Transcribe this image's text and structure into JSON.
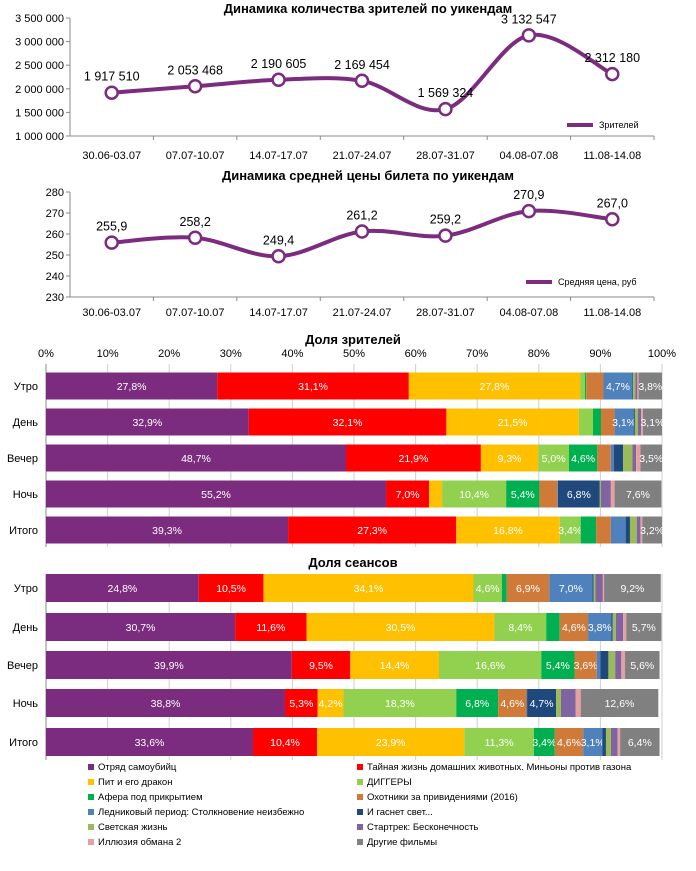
{
  "colors": {
    "line": "#7B2C7E",
    "series": [
      "#7B2C7E",
      "#FF0000",
      "#FFC000",
      "#92D050",
      "#00B050",
      "#D07A3A",
      "#4F81BD",
      "#1F497D",
      "#9BBB59",
      "#8064A2",
      "#E6A0A0",
      "#808080"
    ]
  },
  "chart_data": [
    {
      "type": "line",
      "title": "Динамика количества зрителей по уикендам",
      "categories": [
        "30.06-03.07",
        "07.07-10.07",
        "14.07-17.07",
        "21.07-24.07",
        "28.07-31.07",
        "04.08-07.08",
        "11.08-14.08"
      ],
      "series": [
        {
          "name": "Зрителей",
          "values": [
            1917510,
            2053468,
            2190605,
            2169454,
            1569324,
            3132547,
            2312180
          ]
        }
      ],
      "data_labels": [
        "1 917 510",
        "2 053 468",
        "2 190 605",
        "2 169 454",
        "1 569 324",
        "3 132 547",
        "2 312 180"
      ],
      "ylim": [
        1000000,
        3500000
      ],
      "yticks": [
        "1 000 000",
        "1 500 000",
        "2 000 000",
        "2 500 000",
        "3 000 000",
        "3 500 000"
      ],
      "smooth": true,
      "grid": false,
      "legend": "bottom-right"
    },
    {
      "type": "line",
      "title": "Динамика средней цены билета по уикендам",
      "categories": [
        "30.06-03.07",
        "07.07-10.07",
        "14.07-17.07",
        "21.07-24.07",
        "28.07-31.07",
        "04.08-07.08",
        "11.08-14.08"
      ],
      "series": [
        {
          "name": "Средняя цена, руб",
          "values": [
            255.9,
            258.2,
            249.4,
            261.2,
            259.2,
            270.9,
            267.0
          ]
        }
      ],
      "data_labels": [
        "255,9",
        "258,2",
        "249,4",
        "261,2",
        "259,2",
        "270,9",
        "267,0"
      ],
      "ylim": [
        230,
        280
      ],
      "yticks": [
        "230",
        "240",
        "250",
        "260",
        "270",
        "280"
      ],
      "smooth": true,
      "grid": false,
      "legend": "bottom-right"
    },
    {
      "type": "bar",
      "orientation": "horizontal",
      "stacked": "percent",
      "title": "Доля зрителей",
      "categories": [
        "Утро",
        "День",
        "Вечер",
        "Ночь",
        "Итого"
      ],
      "xticks": [
        "0%",
        "10%",
        "20%",
        "30%",
        "40%",
        "50%",
        "60%",
        "70%",
        "80%",
        "90%",
        "100%"
      ],
      "xlim": [
        0,
        100
      ],
      "grid": true,
      "rows": [
        [
          27.8,
          31.1,
          27.8,
          0.8,
          0.2,
          2.8,
          4.7,
          0.1,
          0.4,
          0.3,
          0.2,
          3.8
        ],
        [
          32.9,
          32.1,
          21.5,
          2.3,
          1.3,
          2.2,
          3.1,
          0.2,
          0.5,
          0.5,
          0.3,
          3.1
        ],
        [
          48.7,
          21.9,
          9.3,
          5.0,
          4.6,
          2.2,
          0.5,
          1.5,
          1.5,
          0.6,
          0.7,
          3.5
        ],
        [
          55.2,
          7.0,
          2.1,
          10.4,
          5.4,
          2.9,
          0.1,
          6.8,
          0.2,
          1.6,
          0.6,
          7.6
        ],
        [
          39.3,
          27.3,
          16.8,
          3.4,
          2.5,
          2.4,
          2.4,
          0.7,
          1.1,
          0.6,
          0.3,
          3.2
        ]
      ]
    },
    {
      "type": "bar",
      "orientation": "horizontal",
      "stacked": "percent",
      "title": "Доля сеансов",
      "categories": [
        "Утро",
        "День",
        "Вечер",
        "Ночь",
        "Итого"
      ],
      "xlim": [
        0,
        100
      ],
      "grid": true,
      "rows": [
        [
          24.8,
          10.5,
          34.1,
          4.6,
          0.8,
          6.9,
          7.0,
          0.2,
          0.3,
          1.2,
          0.2,
          9.2
        ],
        [
          30.7,
          11.6,
          30.5,
          8.4,
          2.2,
          4.6,
          3.8,
          0.2,
          0.5,
          1.2,
          0.5,
          5.7
        ],
        [
          39.9,
          9.5,
          14.4,
          16.6,
          5.4,
          3.6,
          0.6,
          1.3,
          1.1,
          1.0,
          0.6,
          5.6
        ],
        [
          38.8,
          5.3,
          4.2,
          18.3,
          6.8,
          4.6,
          0.1,
          4.7,
          0.8,
          2.4,
          0.8,
          12.6
        ],
        [
          33.6,
          10.4,
          23.9,
          11.3,
          3.4,
          4.6,
          3.1,
          0.6,
          0.8,
          1.1,
          0.4,
          6.4
        ]
      ],
      "legend": "bottom"
    }
  ],
  "legend_entries": [
    "Отряд самоубийц",
    "Тайная жизнь домашних животных. Миньоны против газона",
    "Пит и его дракон",
    "ДИГГЕРЫ",
    "Афера под прикрытием",
    "Охотники за привидениями (2016)",
    "Ледниковый период: Столкновение неизбежно",
    "И гаснет свет...",
    "Светская жизнь",
    "Стартрек: Бесконечность",
    "Иллюзия обмана 2",
    "Другие фильмы"
  ]
}
